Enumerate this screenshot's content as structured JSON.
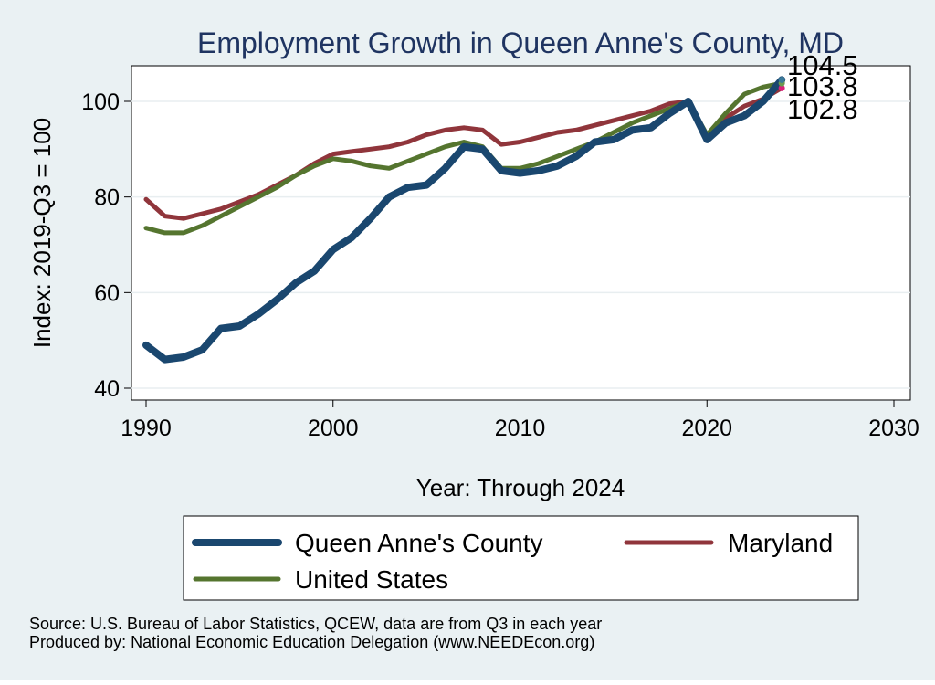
{
  "chart_data": {
    "type": "line",
    "title": "Employment Growth in Queen Anne's County, MD",
    "xlabel": "Year: Through 2024",
    "ylabel": "Index: 2019-Q3 = 100",
    "xlim": [
      1990,
      2030
    ],
    "ylim": [
      40,
      107
    ],
    "xticks": [
      1990,
      2000,
      2010,
      2020,
      2030
    ],
    "yticks": [
      40,
      60,
      80,
      100
    ],
    "grid": true,
    "legend_position": "bottom",
    "x": [
      1990,
      1991,
      1992,
      1993,
      1994,
      1995,
      1996,
      1997,
      1998,
      1999,
      2000,
      2001,
      2002,
      2003,
      2004,
      2005,
      2006,
      2007,
      2008,
      2009,
      2010,
      2011,
      2012,
      2013,
      2014,
      2015,
      2016,
      2017,
      2018,
      2019,
      2020,
      2021,
      2022,
      2023,
      2024
    ],
    "series": [
      {
        "name": "Queen Anne's  County",
        "color": "#1a476f",
        "values": [
          49,
          46,
          46.5,
          48,
          52.5,
          53,
          55.5,
          58.5,
          62,
          64.5,
          69,
          71.5,
          75.5,
          80,
          82,
          82.5,
          86,
          90.5,
          90,
          85.5,
          85,
          85.5,
          86.5,
          88.5,
          91.5,
          92,
          94,
          94.5,
          97.5,
          100,
          92,
          95.5,
          97,
          100,
          104.5
        ]
      },
      {
        "name": "Maryland",
        "color": "#90353b",
        "values": [
          79.5,
          76,
          75.5,
          76.5,
          77.5,
          79,
          80.5,
          82.5,
          84.5,
          87,
          89,
          89.5,
          90,
          90.5,
          91.5,
          93,
          94,
          94.5,
          94,
          91,
          91.5,
          92.5,
          93.5,
          94,
          95,
          96,
          97,
          98,
          99.5,
          100,
          92.5,
          96.5,
          99,
          100.5,
          102.8
        ]
      },
      {
        "name": "United States",
        "color": "#55752f",
        "values": [
          73.5,
          72.5,
          72.5,
          74,
          76,
          78,
          80,
          82,
          84.5,
          86.5,
          88,
          87.5,
          86.5,
          86,
          87.5,
          89,
          90.5,
          91.5,
          90.5,
          86,
          86,
          87,
          88.5,
          90,
          91.5,
          93.5,
          95.5,
          97,
          98.5,
          100,
          93,
          97.5,
          101.5,
          103,
          103.8
        ]
      }
    ],
    "end_labels": [
      "104.5",
      "103.8",
      "102.8"
    ]
  },
  "source_note": "Source: U.S. Bureau of Labor Statistics, QCEW, data are from Q3 in each year",
  "producer_note": "Produced by: National Economic Education Delegation (www.NEEDEcon.org)"
}
